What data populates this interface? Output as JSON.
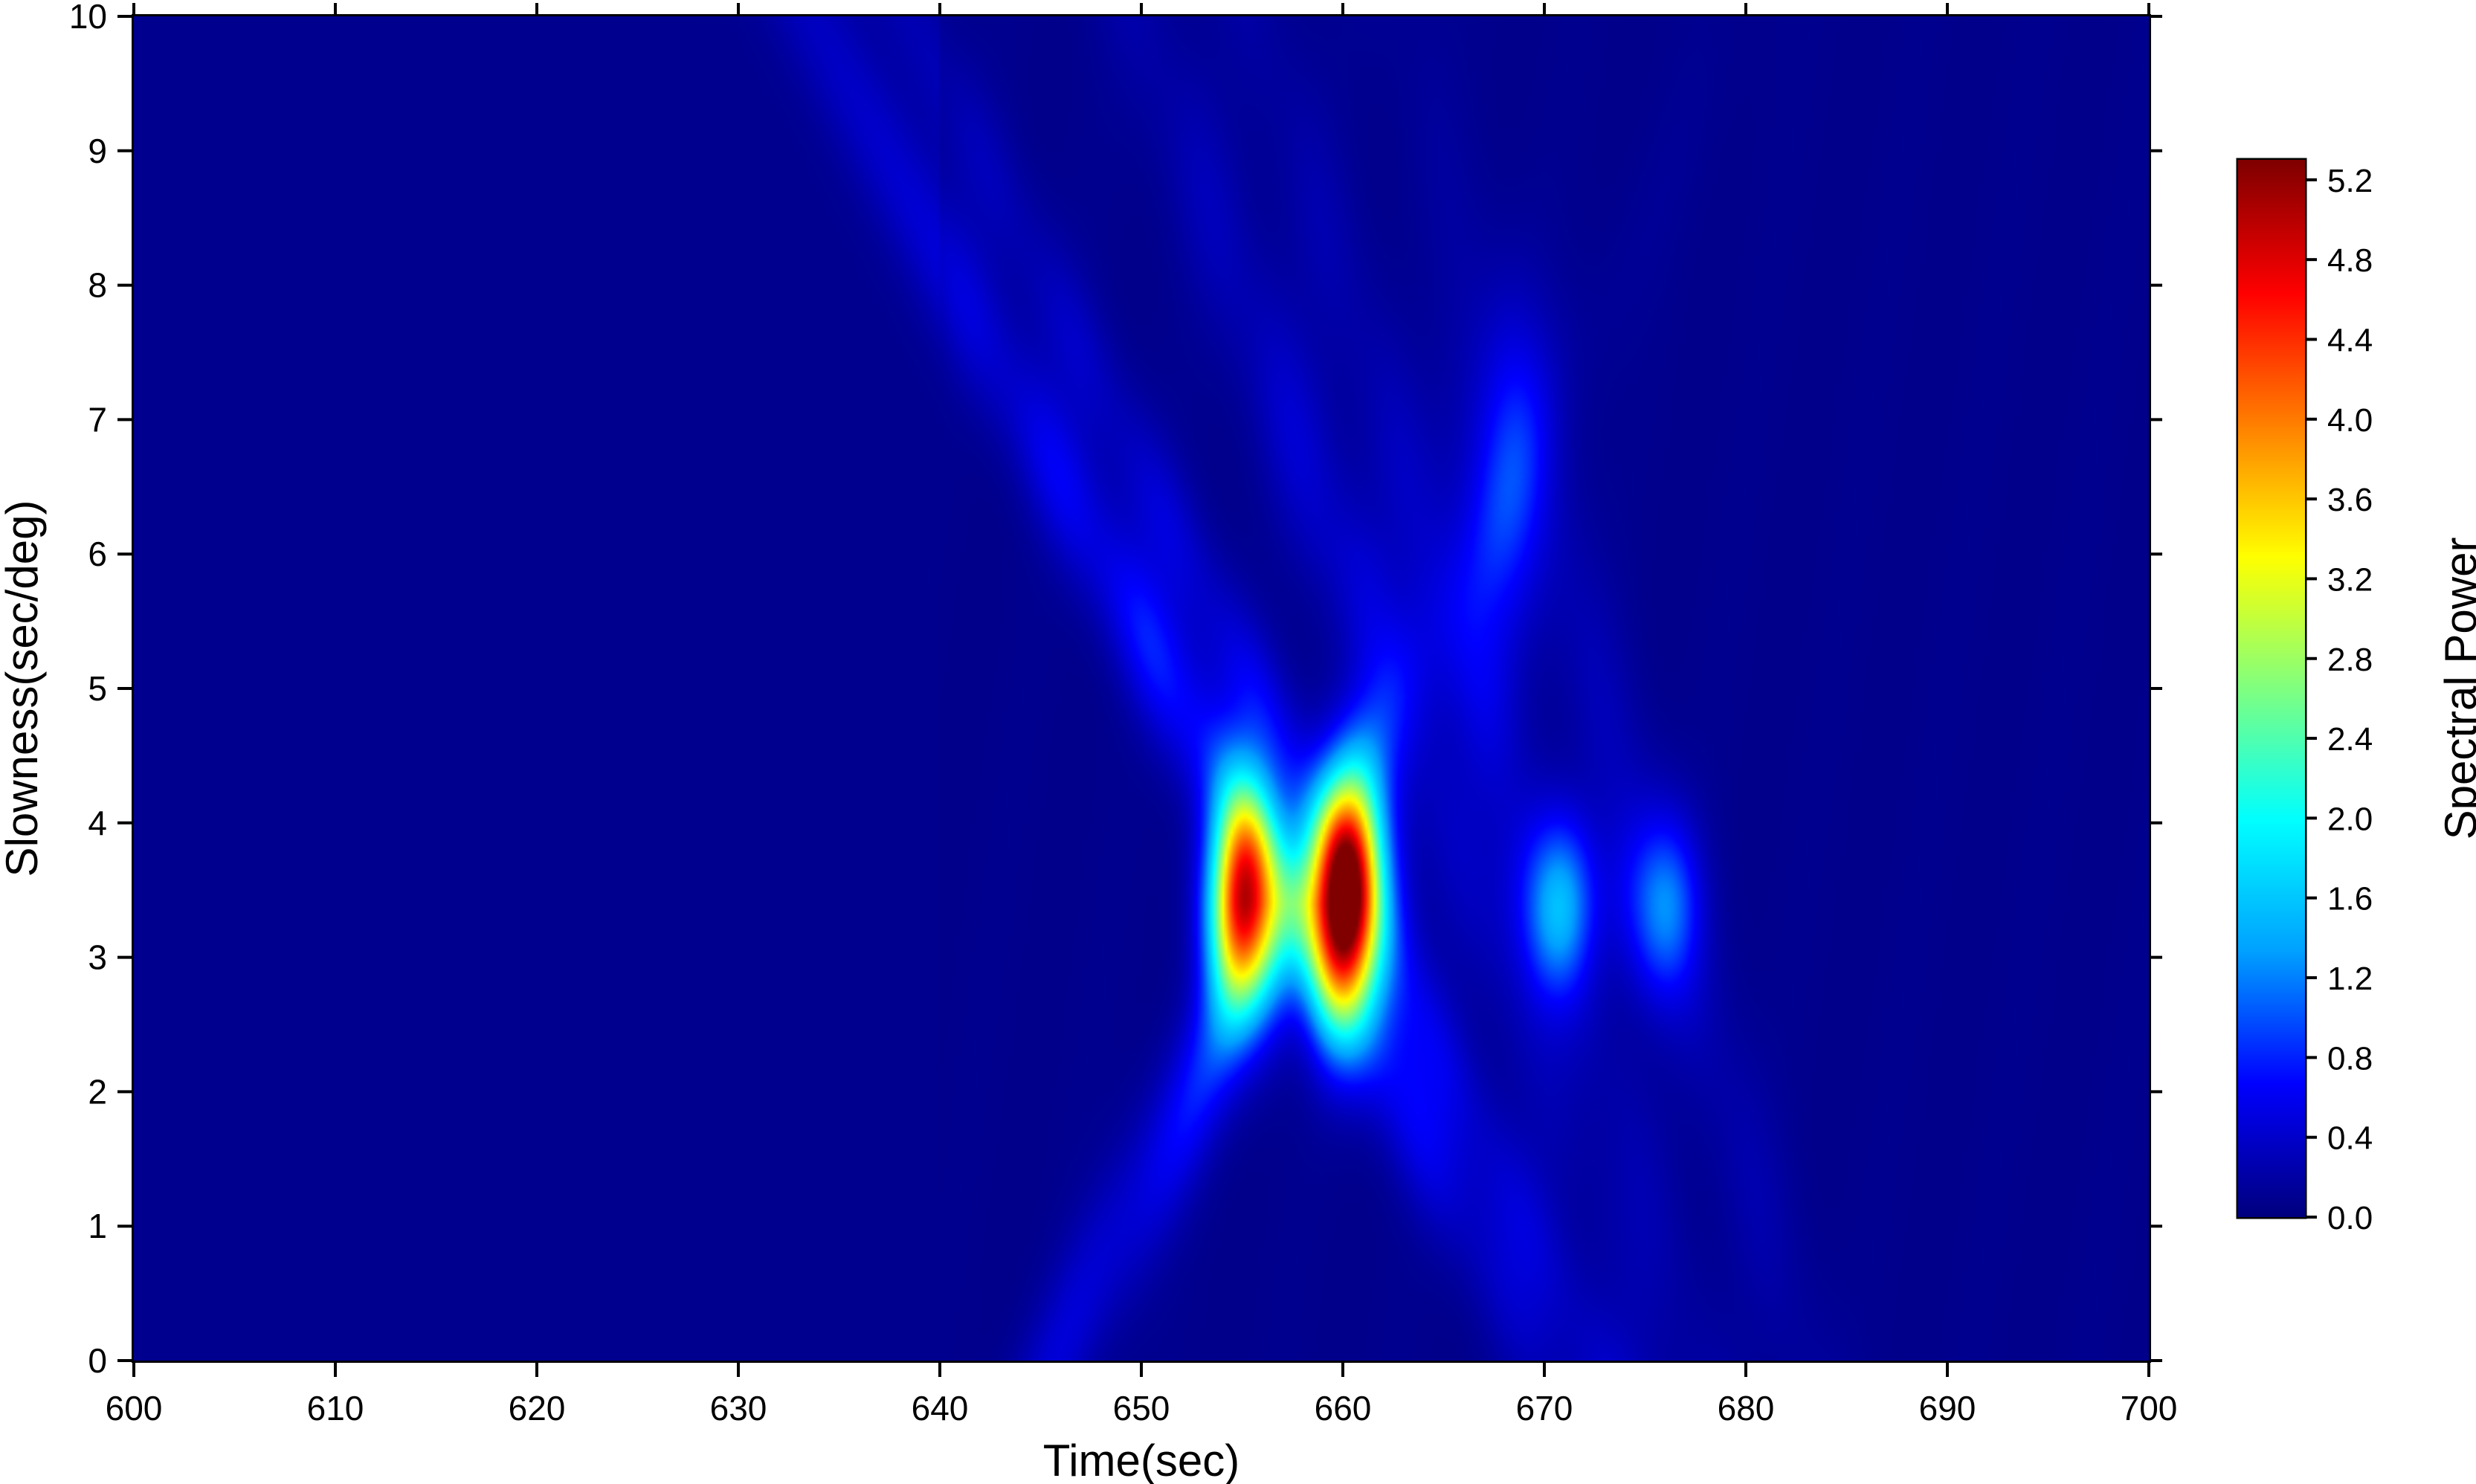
{
  "chart_data": {
    "type": "heatmap",
    "title": "",
    "xlabel": "Time(sec)",
    "ylabel": "Slowness(sec/deg)",
    "xlim": [
      600,
      700
    ],
    "ylim": [
      0,
      10
    ],
    "x_ticks": [
      "600",
      "610",
      "620",
      "630",
      "640",
      "650",
      "660",
      "670",
      "680",
      "690",
      "700"
    ],
    "y_ticks": [
      "0",
      "1",
      "2",
      "3",
      "4",
      "5",
      "6",
      "7",
      "8",
      "9",
      "10"
    ],
    "colorbar": {
      "label": "Spectral Power",
      "range": [
        0.0,
        5.3
      ],
      "ticks": [
        "0.0",
        "0.4",
        "0.8",
        "1.2",
        "1.6",
        "2.0",
        "2.4",
        "2.8",
        "3.2",
        "3.6",
        "4.0",
        "4.4",
        "4.8",
        "5.2"
      ],
      "colormap": [
        "#00007f",
        "#0000ff",
        "#00a0ff",
        "#00ffff",
        "#80ff80",
        "#ffff00",
        "#ff8000",
        "#ff0000",
        "#800000"
      ]
    },
    "peaks": [
      {
        "time": 655.2,
        "slowness": 3.4,
        "power": 4.6
      },
      {
        "time": 660.3,
        "slowness": 3.4,
        "power": 5.2
      }
    ],
    "grid": false
  }
}
